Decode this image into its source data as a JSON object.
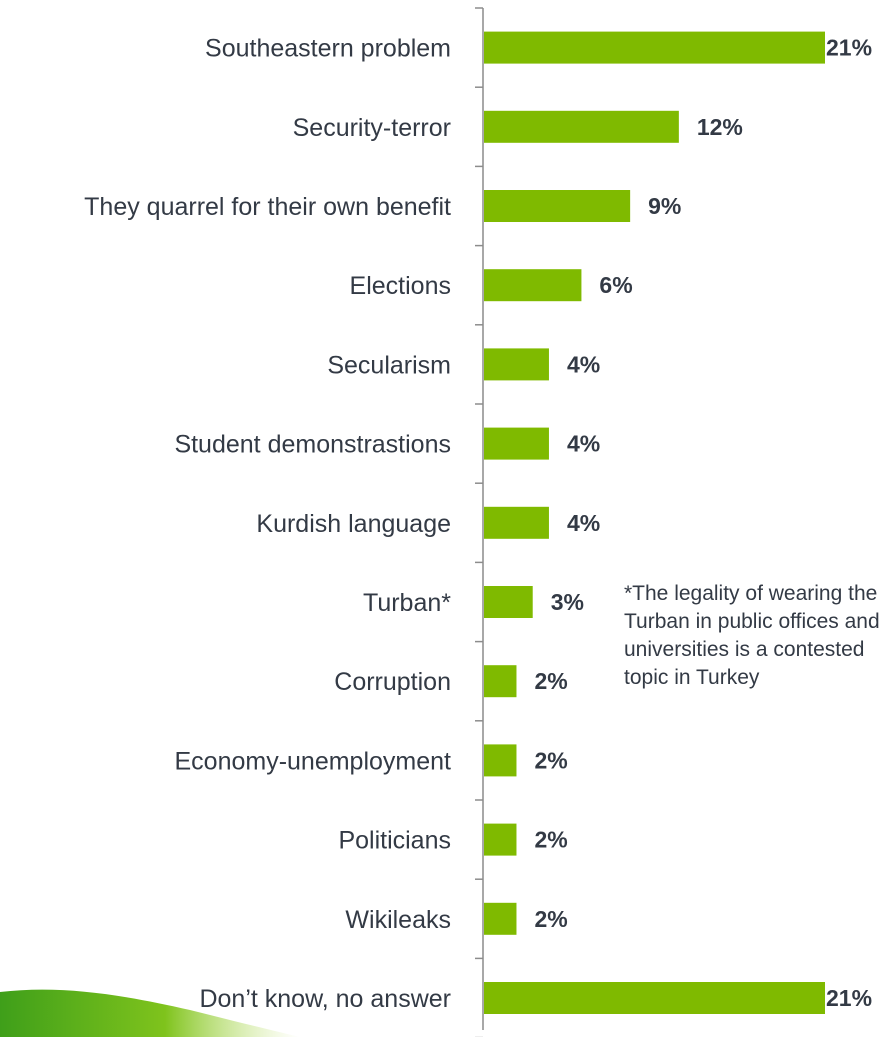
{
  "chart_data": {
    "type": "bar",
    "orientation": "horizontal",
    "categories": [
      "Southeastern problem",
      "Security-terror",
      "They quarrel for their own benefit",
      "Elections",
      "Secularism",
      "Student demonstrastions",
      "Kurdish language",
      "Turban*",
      "Corruption",
      "Economy-unemployment",
      "Politicians",
      "Wikileaks",
      "Don’t know, no answer"
    ],
    "values": [
      21,
      12,
      9,
      6,
      4,
      4,
      4,
      3,
      2,
      2,
      2,
      2,
      21
    ],
    "value_labels": [
      "21%",
      "12%",
      "9%",
      "6%",
      "4%",
      "4%",
      "4%",
      "3%",
      "2%",
      "2%",
      "2%",
      "2%",
      "21%"
    ],
    "bar_color": "#7fba00",
    "xlim": [
      0,
      21
    ],
    "grid": false,
    "legend": "none",
    "annotations": [
      "*The legality of wearing the Turban in public offices and universities is a contested topic in Turkey"
    ]
  }
}
